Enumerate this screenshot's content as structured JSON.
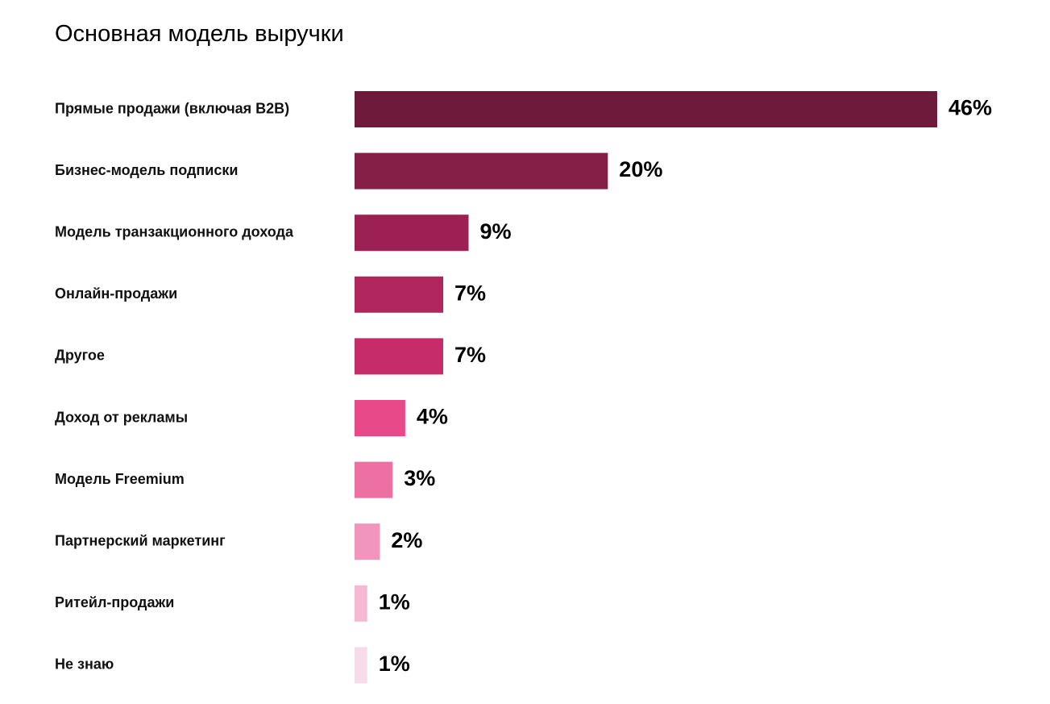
{
  "chart_data": {
    "type": "bar",
    "orientation": "horizontal",
    "title": "Основная модель выручки",
    "categories": [
      "Прямые продажи (включая B2B)",
      "Бизнес-модель подписки",
      "Модель транзакционного дохода",
      "Онлайн-продажи",
      "Другое",
      "Доход от рекламы",
      "Модель Freemium",
      "Партнерский маркетинг",
      "Ритейл-продажи",
      "Не знаю"
    ],
    "values": [
      46,
      20,
      9,
      7,
      7,
      4,
      3,
      2,
      1,
      1
    ],
    "value_labels": [
      "46%",
      "20%",
      "9%",
      "7%",
      "7%",
      "4%",
      "3%",
      "2%",
      "1%",
      "1%"
    ],
    "bar_colors": [
      "#6e1a3a",
      "#861f48",
      "#9c2152",
      "#b1275d",
      "#c62d68",
      "#e84a89",
      "#ed70a3",
      "#f195bd",
      "#f5b9d3",
      "#f8dbe8"
    ],
    "xlim": [
      0,
      46
    ],
    "grid": false,
    "legend": "none"
  }
}
